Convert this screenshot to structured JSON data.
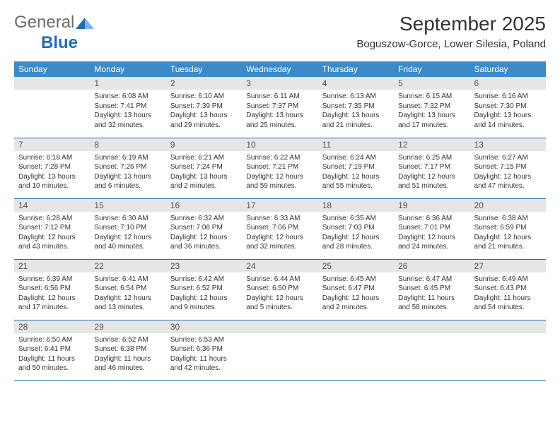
{
  "brand": {
    "part1": "General",
    "part2": "Blue"
  },
  "title": "September 2025",
  "location": "Boguszow-Gorce, Lower Silesia, Poland",
  "colors": {
    "header_bg": "#3b8bca",
    "header_text": "#ffffff",
    "border": "#1e6fb8",
    "daynum_bg": "#e6e6e6",
    "body_text": "#333333",
    "brand_gray": "#6b6b6b",
    "brand_blue": "#1e6fb8",
    "page_bg": "#ffffff"
  },
  "weekdays": [
    "Sunday",
    "Monday",
    "Tuesday",
    "Wednesday",
    "Thursday",
    "Friday",
    "Saturday"
  ],
  "weeks": [
    [
      null,
      {
        "n": "1",
        "sr": "Sunrise: 6:08 AM",
        "ss": "Sunset: 7:41 PM",
        "d1": "Daylight: 13 hours",
        "d2": "and 32 minutes."
      },
      {
        "n": "2",
        "sr": "Sunrise: 6:10 AM",
        "ss": "Sunset: 7:39 PM",
        "d1": "Daylight: 13 hours",
        "d2": "and 29 minutes."
      },
      {
        "n": "3",
        "sr": "Sunrise: 6:11 AM",
        "ss": "Sunset: 7:37 PM",
        "d1": "Daylight: 13 hours",
        "d2": "and 25 minutes."
      },
      {
        "n": "4",
        "sr": "Sunrise: 6:13 AM",
        "ss": "Sunset: 7:35 PM",
        "d1": "Daylight: 13 hours",
        "d2": "and 21 minutes."
      },
      {
        "n": "5",
        "sr": "Sunrise: 6:15 AM",
        "ss": "Sunset: 7:32 PM",
        "d1": "Daylight: 13 hours",
        "d2": "and 17 minutes."
      },
      {
        "n": "6",
        "sr": "Sunrise: 6:16 AM",
        "ss": "Sunset: 7:30 PM",
        "d1": "Daylight: 13 hours",
        "d2": "and 14 minutes."
      }
    ],
    [
      {
        "n": "7",
        "sr": "Sunrise: 6:18 AM",
        "ss": "Sunset: 7:28 PM",
        "d1": "Daylight: 13 hours",
        "d2": "and 10 minutes."
      },
      {
        "n": "8",
        "sr": "Sunrise: 6:19 AM",
        "ss": "Sunset: 7:26 PM",
        "d1": "Daylight: 13 hours",
        "d2": "and 6 minutes."
      },
      {
        "n": "9",
        "sr": "Sunrise: 6:21 AM",
        "ss": "Sunset: 7:24 PM",
        "d1": "Daylight: 13 hours",
        "d2": "and 2 minutes."
      },
      {
        "n": "10",
        "sr": "Sunrise: 6:22 AM",
        "ss": "Sunset: 7:21 PM",
        "d1": "Daylight: 12 hours",
        "d2": "and 59 minutes."
      },
      {
        "n": "11",
        "sr": "Sunrise: 6:24 AM",
        "ss": "Sunset: 7:19 PM",
        "d1": "Daylight: 12 hours",
        "d2": "and 55 minutes."
      },
      {
        "n": "12",
        "sr": "Sunrise: 6:25 AM",
        "ss": "Sunset: 7:17 PM",
        "d1": "Daylight: 12 hours",
        "d2": "and 51 minutes."
      },
      {
        "n": "13",
        "sr": "Sunrise: 6:27 AM",
        "ss": "Sunset: 7:15 PM",
        "d1": "Daylight: 12 hours",
        "d2": "and 47 minutes."
      }
    ],
    [
      {
        "n": "14",
        "sr": "Sunrise: 6:28 AM",
        "ss": "Sunset: 7:12 PM",
        "d1": "Daylight: 12 hours",
        "d2": "and 43 minutes."
      },
      {
        "n": "15",
        "sr": "Sunrise: 6:30 AM",
        "ss": "Sunset: 7:10 PM",
        "d1": "Daylight: 12 hours",
        "d2": "and 40 minutes."
      },
      {
        "n": "16",
        "sr": "Sunrise: 6:32 AM",
        "ss": "Sunset: 7:08 PM",
        "d1": "Daylight: 12 hours",
        "d2": "and 36 minutes."
      },
      {
        "n": "17",
        "sr": "Sunrise: 6:33 AM",
        "ss": "Sunset: 7:06 PM",
        "d1": "Daylight: 12 hours",
        "d2": "and 32 minutes."
      },
      {
        "n": "18",
        "sr": "Sunrise: 6:35 AM",
        "ss": "Sunset: 7:03 PM",
        "d1": "Daylight: 12 hours",
        "d2": "and 28 minutes."
      },
      {
        "n": "19",
        "sr": "Sunrise: 6:36 AM",
        "ss": "Sunset: 7:01 PM",
        "d1": "Daylight: 12 hours",
        "d2": "and 24 minutes."
      },
      {
        "n": "20",
        "sr": "Sunrise: 6:38 AM",
        "ss": "Sunset: 6:59 PM",
        "d1": "Daylight: 12 hours",
        "d2": "and 21 minutes."
      }
    ],
    [
      {
        "n": "21",
        "sr": "Sunrise: 6:39 AM",
        "ss": "Sunset: 6:56 PM",
        "d1": "Daylight: 12 hours",
        "d2": "and 17 minutes."
      },
      {
        "n": "22",
        "sr": "Sunrise: 6:41 AM",
        "ss": "Sunset: 6:54 PM",
        "d1": "Daylight: 12 hours",
        "d2": "and 13 minutes."
      },
      {
        "n": "23",
        "sr": "Sunrise: 6:42 AM",
        "ss": "Sunset: 6:52 PM",
        "d1": "Daylight: 12 hours",
        "d2": "and 9 minutes."
      },
      {
        "n": "24",
        "sr": "Sunrise: 6:44 AM",
        "ss": "Sunset: 6:50 PM",
        "d1": "Daylight: 12 hours",
        "d2": "and 5 minutes."
      },
      {
        "n": "25",
        "sr": "Sunrise: 6:45 AM",
        "ss": "Sunset: 6:47 PM",
        "d1": "Daylight: 12 hours",
        "d2": "and 2 minutes."
      },
      {
        "n": "26",
        "sr": "Sunrise: 6:47 AM",
        "ss": "Sunset: 6:45 PM",
        "d1": "Daylight: 11 hours",
        "d2": "and 58 minutes."
      },
      {
        "n": "27",
        "sr": "Sunrise: 6:49 AM",
        "ss": "Sunset: 6:43 PM",
        "d1": "Daylight: 11 hours",
        "d2": "and 54 minutes."
      }
    ],
    [
      {
        "n": "28",
        "sr": "Sunrise: 6:50 AM",
        "ss": "Sunset: 6:41 PM",
        "d1": "Daylight: 11 hours",
        "d2": "and 50 minutes."
      },
      {
        "n": "29",
        "sr": "Sunrise: 6:52 AM",
        "ss": "Sunset: 6:38 PM",
        "d1": "Daylight: 11 hours",
        "d2": "and 46 minutes."
      },
      {
        "n": "30",
        "sr": "Sunrise: 6:53 AM",
        "ss": "Sunset: 6:36 PM",
        "d1": "Daylight: 11 hours",
        "d2": "and 42 minutes."
      },
      null,
      null,
      null,
      null
    ]
  ]
}
